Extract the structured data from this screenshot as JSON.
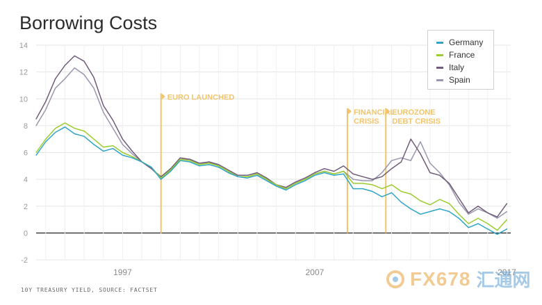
{
  "title": "Borrowing Costs",
  "source": "10Y TREASURY YIELD, SOURCE: FACTSET",
  "watermark": {
    "brand": "FX678",
    "cn": "汇通网"
  },
  "chart_data": {
    "type": "line",
    "title": "Borrowing Costs",
    "xlabel": "",
    "ylabel": "",
    "x_range": [
      1992.5,
      2017.2
    ],
    "ylim": [
      -2,
      14
    ],
    "y_ticks": [
      "14",
      "12",
      "10",
      "8",
      "6",
      "4",
      "2",
      "0",
      "-2"
    ],
    "x_ticks": [
      {
        "year": 1997,
        "label": "1997"
      },
      {
        "year": 2007,
        "label": "2007"
      },
      {
        "year": 2017,
        "label": "2017"
      }
    ],
    "grid": true,
    "legend_position": "top-right",
    "annotations": [
      {
        "x": 1999.0,
        "lines": [
          "EURO LAUNCHED"
        ],
        "top_value": 10.4
      },
      {
        "x": 2008.7,
        "lines": [
          "FINANCIAL",
          "CRISIS"
        ],
        "top_value": 9.3
      },
      {
        "x": 2010.7,
        "lines": [
          "EUROZONE",
          "DEBT CRISIS"
        ],
        "top_value": 9.3
      }
    ],
    "colors": {
      "Germany": "#2fa4c6",
      "France": "#9ccc2f",
      "Italy": "#6e5c78",
      "Spain": "#9a96ae",
      "annotation": "#f2c46b",
      "zero_line": "#222222"
    },
    "series": [
      {
        "name": "Germany",
        "points": [
          [
            1992.5,
            5.8
          ],
          [
            1993.0,
            6.8
          ],
          [
            1993.5,
            7.5
          ],
          [
            1994.0,
            7.9
          ],
          [
            1994.5,
            7.4
          ],
          [
            1995.0,
            7.2
          ],
          [
            1995.5,
            6.6
          ],
          [
            1996.0,
            6.1
          ],
          [
            1996.5,
            6.3
          ],
          [
            1997.0,
            5.8
          ],
          [
            1997.5,
            5.6
          ],
          [
            1998.0,
            5.3
          ],
          [
            1998.5,
            4.9
          ],
          [
            1999.0,
            4.0
          ],
          [
            1999.5,
            4.6
          ],
          [
            2000.0,
            5.4
          ],
          [
            2000.5,
            5.3
          ],
          [
            2001.0,
            5.0
          ],
          [
            2001.5,
            5.1
          ],
          [
            2002.0,
            4.9
          ],
          [
            2002.5,
            4.5
          ],
          [
            2003.0,
            4.2
          ],
          [
            2003.5,
            4.1
          ],
          [
            2004.0,
            4.3
          ],
          [
            2004.5,
            3.9
          ],
          [
            2005.0,
            3.5
          ],
          [
            2005.5,
            3.2
          ],
          [
            2006.0,
            3.6
          ],
          [
            2006.5,
            3.9
          ],
          [
            2007.0,
            4.3
          ],
          [
            2007.5,
            4.5
          ],
          [
            2008.0,
            4.3
          ],
          [
            2008.5,
            4.4
          ],
          [
            2009.0,
            3.3
          ],
          [
            2009.5,
            3.3
          ],
          [
            2010.0,
            3.1
          ],
          [
            2010.5,
            2.7
          ],
          [
            2011.0,
            3.0
          ],
          [
            2011.5,
            2.3
          ],
          [
            2012.0,
            1.8
          ],
          [
            2012.5,
            1.4
          ],
          [
            2013.0,
            1.6
          ],
          [
            2013.5,
            1.8
          ],
          [
            2014.0,
            1.6
          ],
          [
            2014.5,
            1.1
          ],
          [
            2015.0,
            0.4
          ],
          [
            2015.5,
            0.7
          ],
          [
            2016.0,
            0.3
          ],
          [
            2016.5,
            -0.1
          ],
          [
            2017.0,
            0.3
          ]
        ]
      },
      {
        "name": "France",
        "points": [
          [
            1992.5,
            6.0
          ],
          [
            1993.0,
            7.0
          ],
          [
            1993.5,
            7.8
          ],
          [
            1994.0,
            8.2
          ],
          [
            1994.5,
            7.8
          ],
          [
            1995.0,
            7.6
          ],
          [
            1995.5,
            7.0
          ],
          [
            1996.0,
            6.4
          ],
          [
            1996.5,
            6.5
          ],
          [
            1997.0,
            6.0
          ],
          [
            1997.5,
            5.7
          ],
          [
            1998.0,
            5.3
          ],
          [
            1998.5,
            4.9
          ],
          [
            1999.0,
            4.1
          ],
          [
            1999.5,
            4.7
          ],
          [
            2000.0,
            5.5
          ],
          [
            2000.5,
            5.4
          ],
          [
            2001.0,
            5.1
          ],
          [
            2001.5,
            5.2
          ],
          [
            2002.0,
            5.0
          ],
          [
            2002.5,
            4.6
          ],
          [
            2003.0,
            4.2
          ],
          [
            2003.5,
            4.2
          ],
          [
            2004.0,
            4.4
          ],
          [
            2004.5,
            4.0
          ],
          [
            2005.0,
            3.6
          ],
          [
            2005.5,
            3.3
          ],
          [
            2006.0,
            3.7
          ],
          [
            2006.5,
            4.0
          ],
          [
            2007.0,
            4.4
          ],
          [
            2007.5,
            4.6
          ],
          [
            2008.0,
            4.4
          ],
          [
            2008.5,
            4.6
          ],
          [
            2009.0,
            3.7
          ],
          [
            2009.5,
            3.7
          ],
          [
            2010.0,
            3.6
          ],
          [
            2010.5,
            3.3
          ],
          [
            2011.0,
            3.6
          ],
          [
            2011.5,
            3.1
          ],
          [
            2012.0,
            2.9
          ],
          [
            2012.5,
            2.4
          ],
          [
            2013.0,
            2.1
          ],
          [
            2013.5,
            2.5
          ],
          [
            2014.0,
            2.2
          ],
          [
            2014.5,
            1.4
          ],
          [
            2015.0,
            0.7
          ],
          [
            2015.5,
            1.1
          ],
          [
            2016.0,
            0.7
          ],
          [
            2016.5,
            0.2
          ],
          [
            2017.0,
            1.0
          ]
        ]
      },
      {
        "name": "Italy",
        "points": [
          [
            1992.5,
            8.5
          ],
          [
            1993.0,
            9.8
          ],
          [
            1993.5,
            11.5
          ],
          [
            1994.0,
            12.5
          ],
          [
            1994.5,
            13.2
          ],
          [
            1995.0,
            12.8
          ],
          [
            1995.5,
            11.6
          ],
          [
            1996.0,
            9.5
          ],
          [
            1996.5,
            8.4
          ],
          [
            1997.0,
            7.0
          ],
          [
            1997.5,
            6.1
          ],
          [
            1998.0,
            5.3
          ],
          [
            1998.5,
            4.8
          ],
          [
            1999.0,
            4.2
          ],
          [
            1999.5,
            4.8
          ],
          [
            2000.0,
            5.6
          ],
          [
            2000.5,
            5.5
          ],
          [
            2001.0,
            5.2
          ],
          [
            2001.5,
            5.3
          ],
          [
            2002.0,
            5.1
          ],
          [
            2002.5,
            4.7
          ],
          [
            2003.0,
            4.3
          ],
          [
            2003.5,
            4.3
          ],
          [
            2004.0,
            4.5
          ],
          [
            2004.5,
            4.1
          ],
          [
            2005.0,
            3.6
          ],
          [
            2005.5,
            3.4
          ],
          [
            2006.0,
            3.8
          ],
          [
            2006.5,
            4.1
          ],
          [
            2007.0,
            4.5
          ],
          [
            2007.5,
            4.8
          ],
          [
            2008.0,
            4.6
          ],
          [
            2008.5,
            5.0
          ],
          [
            2009.0,
            4.4
          ],
          [
            2009.5,
            4.2
          ],
          [
            2010.0,
            4.0
          ],
          [
            2010.5,
            4.2
          ],
          [
            2011.0,
            4.8
          ],
          [
            2011.5,
            5.3
          ],
          [
            2012.0,
            7.0
          ],
          [
            2012.5,
            5.9
          ],
          [
            2013.0,
            4.5
          ],
          [
            2013.5,
            4.3
          ],
          [
            2014.0,
            3.7
          ],
          [
            2014.5,
            2.6
          ],
          [
            2015.0,
            1.5
          ],
          [
            2015.5,
            2.0
          ],
          [
            2016.0,
            1.5
          ],
          [
            2016.5,
            1.2
          ],
          [
            2017.0,
            2.2
          ]
        ]
      },
      {
        "name": "Spain",
        "points": [
          [
            1992.5,
            8.0
          ],
          [
            1993.0,
            9.2
          ],
          [
            1993.5,
            10.8
          ],
          [
            1994.0,
            11.5
          ],
          [
            1994.5,
            12.3
          ],
          [
            1995.0,
            11.8
          ],
          [
            1995.5,
            10.8
          ],
          [
            1996.0,
            9.0
          ],
          [
            1996.5,
            7.8
          ],
          [
            1997.0,
            6.6
          ],
          [
            1997.5,
            5.9
          ],
          [
            1998.0,
            5.3
          ],
          [
            1998.5,
            4.8
          ],
          [
            1999.0,
            4.1
          ],
          [
            1999.5,
            4.8
          ],
          [
            2000.0,
            5.5
          ],
          [
            2000.5,
            5.5
          ],
          [
            2001.0,
            5.1
          ],
          [
            2001.5,
            5.3
          ],
          [
            2002.0,
            5.0
          ],
          [
            2002.5,
            4.6
          ],
          [
            2003.0,
            4.2
          ],
          [
            2003.5,
            4.2
          ],
          [
            2004.0,
            4.4
          ],
          [
            2004.5,
            4.0
          ],
          [
            2005.0,
            3.5
          ],
          [
            2005.5,
            3.3
          ],
          [
            2006.0,
            3.7
          ],
          [
            2006.5,
            4.0
          ],
          [
            2007.0,
            4.4
          ],
          [
            2007.5,
            4.6
          ],
          [
            2008.0,
            4.4
          ],
          [
            2008.5,
            4.6
          ],
          [
            2009.0,
            4.0
          ],
          [
            2009.5,
            3.9
          ],
          [
            2010.0,
            3.9
          ],
          [
            2010.5,
            4.5
          ],
          [
            2011.0,
            5.4
          ],
          [
            2011.5,
            5.6
          ],
          [
            2012.0,
            5.4
          ],
          [
            2012.5,
            6.8
          ],
          [
            2013.0,
            5.2
          ],
          [
            2013.5,
            4.5
          ],
          [
            2014.0,
            3.6
          ],
          [
            2014.5,
            2.3
          ],
          [
            2015.0,
            1.4
          ],
          [
            2015.5,
            1.8
          ],
          [
            2016.0,
            1.5
          ],
          [
            2016.5,
            1.1
          ],
          [
            2017.0,
            1.6
          ]
        ]
      }
    ]
  }
}
